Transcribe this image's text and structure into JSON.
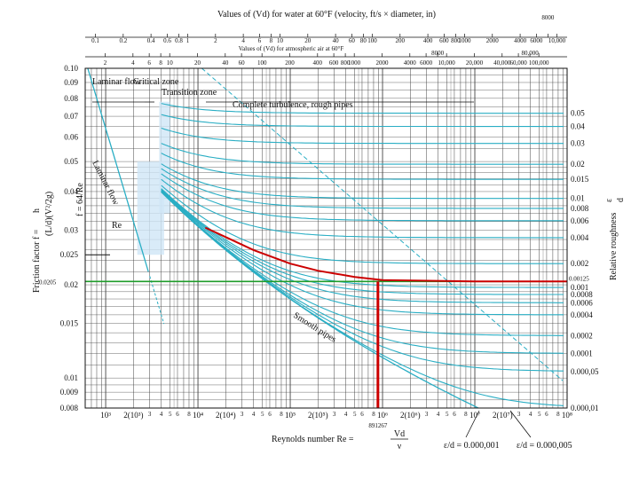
{
  "chart_data": {
    "type": "line",
    "title": "",
    "top_axis": {
      "water_title": "Values of (Vd) for water at 60°F (velocity, ft/s × diameter, in)",
      "water_ticks": [
        "0.1",
        "0.2",
        "0.4",
        "0.6",
        "0.8",
        "1",
        "2",
        "4",
        "6",
        "8",
        "10",
        "20",
        "40",
        "60",
        "80",
        "100",
        "200",
        "400",
        "600",
        "800",
        "1000",
        "2000",
        "4000",
        "6000",
        "8000",
        "10,000"
      ],
      "air_title": "Values of (Vd) for atmospheric air at 60°F",
      "air_ticks": [
        "2",
        "4",
        "6",
        "8",
        "10",
        "20",
        "40",
        "60",
        "100",
        "200",
        "400",
        "600",
        "800",
        "1000",
        "2000",
        "4000",
        "6000",
        "8000",
        "10,000",
        "20,000",
        "40,000",
        "60,000",
        "80,000",
        "100,000"
      ]
    },
    "xlabel": "Reynolds number Re =",
    "xlabel_fraction": {
      "num": "Vd",
      "den": "ν"
    },
    "ylabel": "Friction factor f =",
    "ylabel_fraction": {
      "num": "h",
      "den": "(L/d)(V²/2g)"
    },
    "right_label": "Relative roughness",
    "right_label_fraction": {
      "num": "ε",
      "den": "d"
    },
    "x_scale": "log",
    "y_scale": "log",
    "xlim": [
      600,
      100000000
    ],
    "ylim": [
      0.008,
      0.1
    ],
    "x_ticks": [
      {
        "value": 1000,
        "label": "10³"
      },
      {
        "value": 2000,
        "label": "2(10³)"
      },
      {
        "value": 10000,
        "label": "10⁴"
      },
      {
        "value": 20000,
        "label": "2(10⁴)"
      },
      {
        "value": 100000,
        "label": "10⁵"
      },
      {
        "value": 200000,
        "label": "2(10⁵)"
      },
      {
        "value": 1000000,
        "label": "10⁶"
      },
      {
        "value": 2000000,
        "label": "2(10⁶)"
      },
      {
        "value": 10000000,
        "label": "10⁷"
      },
      {
        "value": 20000000,
        "label": "2(10⁷)"
      },
      {
        "value": 100000000,
        "label": "10⁸"
      }
    ],
    "x_minor_labels": [
      "3",
      "4",
      "5",
      "6",
      "8"
    ],
    "y_ticks": [
      {
        "value": 0.1,
        "label": "0.10"
      },
      {
        "value": 0.09,
        "label": "0.09"
      },
      {
        "value": 0.08,
        "label": "0.08"
      },
      {
        "value": 0.07,
        "label": "0.07"
      },
      {
        "value": 0.06,
        "label": "0.06"
      },
      {
        "value": 0.05,
        "label": "0.05"
      },
      {
        "value": 0.04,
        "label": "0.04"
      },
      {
        "value": 0.03,
        "label": "0.03"
      },
      {
        "value": 0.025,
        "label": "0.025"
      },
      {
        "value": 0.02,
        "label": "0.02"
      },
      {
        "value": 0.015,
        "label": "0.015"
      },
      {
        "value": 0.01,
        "label": "0.01"
      },
      {
        "value": 0.009,
        "label": "0.009"
      },
      {
        "value": 0.008,
        "label": "0.008"
      }
    ],
    "roughness_curves": [
      {
        "label": "0.05",
        "f": 0.0716
      },
      {
        "label": "0.04",
        "f": 0.0649
      },
      {
        "label": "0.03",
        "f": 0.0572
      },
      {
        "label": "0.02",
        "f": 0.049
      },
      {
        "label": "0.015",
        "f": 0.0438
      },
      {
        "label": "0.01",
        "f": 0.038
      },
      {
        "label": "0.008",
        "f": 0.0353
      },
      {
        "label": "0.006",
        "f": 0.0322
      },
      {
        "label": "0.004",
        "f": 0.0284
      },
      {
        "label": "0.002",
        "f": 0.0234
      },
      {
        "label": "0.001",
        "f": 0.0196
      },
      {
        "label": "0.0008",
        "f": 0.0186
      },
      {
        "label": "0.0006",
        "f": 0.0175
      },
      {
        "label": "0.0004",
        "f": 0.016
      },
      {
        "label": "0.0002",
        "f": 0.0137
      },
      {
        "label": "0.0001",
        "f": 0.012
      },
      {
        "label": "0.000,05",
        "f": 0.0105
      },
      {
        "label": "0.000,01",
        "f": 0.008
      }
    ],
    "regions": [
      "Laminar flow",
      "Critical zone",
      "Transition zone",
      "Complete turbulence, rough pipes"
    ],
    "annotations": {
      "laminar_line": "Laminar flow",
      "laminar_eq": "f = 64/Re",
      "re_critical": "Re",
      "smooth": "Smooth pipes",
      "eps_bottom_1": "ε/d = 0.000,001",
      "eps_bottom_2": "ε/d = 0.000,005"
    },
    "highlight": {
      "relative_roughness": 0.00125,
      "relative_roughness_label": "0.00125",
      "reynolds": 891267,
      "reynolds_label": "891267",
      "friction_factor": 0.0205,
      "friction_factor_label": "0.0205",
      "curve_points": [
        [
          12000,
          0.0306
        ],
        [
          20000,
          0.0285
        ],
        [
          40000,
          0.0259
        ],
        [
          100000,
          0.0234
        ],
        [
          200000,
          0.0222
        ],
        [
          500000,
          0.0212
        ],
        [
          1000000,
          0.0207
        ],
        [
          10000000,
          0.0205
        ],
        [
          100000000,
          0.0205
        ]
      ]
    },
    "colors": {
      "curve": "#2aaec4",
      "highlight": "#cc0000",
      "guide": "#1f9c2a",
      "grid": "#444444",
      "shade": "#cfe6f6"
    }
  }
}
